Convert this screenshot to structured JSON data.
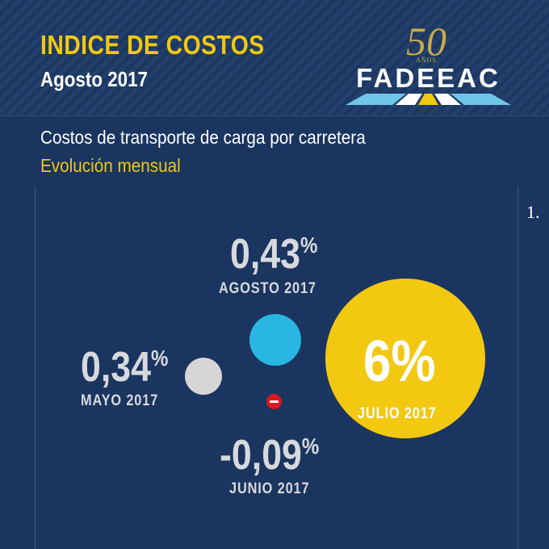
{
  "header": {
    "title": "INDICE DE COSTOS",
    "date": "Agosto 2017",
    "logo": {
      "anniversary": "50",
      "anos": "AÑOS",
      "name": "FADEEAC"
    }
  },
  "info": {
    "description": "Costos de transporte de carga por carretera",
    "subtitle": "Evolución mensual"
  },
  "page_number": "1.",
  "items": {
    "agosto": {
      "value": "0,43",
      "unit": "%",
      "label": "AGOSTO 2017",
      "color": "#29b6e3"
    },
    "mayo": {
      "value": "0,34",
      "unit": "%",
      "label": "MAYO 2017",
      "color": "#d6d6d6"
    },
    "junio": {
      "value": "-0,09",
      "unit": "%",
      "label": "JUNIO 2017",
      "color": "#d71920",
      "icon": "minus-icon"
    },
    "julio": {
      "value": "6",
      "unit": "%",
      "label": "JULIO 2017",
      "color": "#f2c811"
    }
  },
  "colors": {
    "background": "#1a355f",
    "accent": "#f2c811",
    "text_light": "#d7d9dd"
  }
}
